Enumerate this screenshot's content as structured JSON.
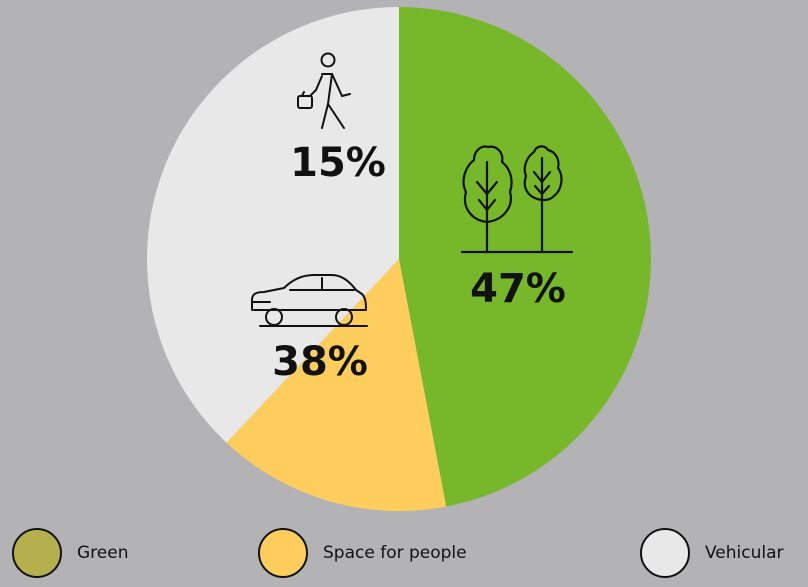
{
  "chart_data": {
    "type": "pie",
    "categories": [
      "Green",
      "Space for people",
      "Vehicular"
    ],
    "values": [
      47,
      15,
      38
    ],
    "value_labels": [
      "47%",
      "15%",
      "38%"
    ],
    "colors": [
      "#76b82a",
      "#fecd5c",
      "#e8e8e8"
    ],
    "start_angle_deg": 0,
    "direction": "clockwise",
    "icons": [
      "trees-icon",
      "pedestrian-icon",
      "car-icon"
    ]
  },
  "legend": {
    "placement": "bottom",
    "items": [
      {
        "label": "Green",
        "color": "#b5b04d"
      },
      {
        "label": "Space for people",
        "color": "#fecd5c"
      },
      {
        "label": "Vehicular",
        "color": "#e8e8e8"
      }
    ]
  }
}
